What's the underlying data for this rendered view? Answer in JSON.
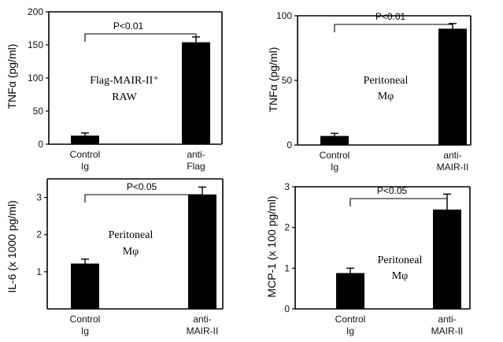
{
  "chart_data": [
    {
      "type": "bar",
      "categories": [
        "Control\nIg",
        "anti-\nFlag"
      ],
      "values": [
        13,
        154
      ],
      "errors": [
        4,
        8
      ],
      "ylabel": "TNFα (pg/ml)",
      "ylim": [
        0,
        200
      ],
      "yticks": [
        0,
        50,
        100,
        150,
        200
      ],
      "annotation": [
        "Flag-MAIR-II⁺",
        "RAW"
      ],
      "significance": "P<0.01"
    },
    {
      "type": "bar",
      "categories": [
        "Control\nIg",
        "anti-\nMAIR-II"
      ],
      "values": [
        7,
        90
      ],
      "errors": [
        2,
        4
      ],
      "ylabel": "TNFα (pg/ml)",
      "ylim": [
        0,
        100
      ],
      "yticks": [
        0,
        50,
        100
      ],
      "annotation": [
        "Peritoneal",
        "Mφ"
      ],
      "significance": "P<0.01"
    },
    {
      "type": "bar",
      "categories": [
        "Control\nIg",
        "anti-\nMAIR-II"
      ],
      "values": [
        1.22,
        3.08
      ],
      "errors": [
        0.12,
        0.2
      ],
      "ylabel": "IL-6 (x 1000 pg/ml)",
      "ylim": [
        0,
        3.5
      ],
      "yticks": [
        1,
        2,
        3
      ],
      "annotation": [
        "Peritoneal",
        "Mφ"
      ],
      "significance": "P<0.05"
    },
    {
      "type": "bar",
      "categories": [
        "Control\nIg",
        "anti-\nMAIR-II"
      ],
      "values": [
        0.88,
        2.44
      ],
      "errors": [
        0.12,
        0.38
      ],
      "ylabel": "MCP-1 (x 100 pg/ml)",
      "ylim": [
        0,
        3
      ],
      "yticks": [
        0,
        1,
        2,
        3
      ],
      "annotation": [
        "Peritoneal",
        "Mφ"
      ],
      "significance": "P<0.05"
    }
  ]
}
